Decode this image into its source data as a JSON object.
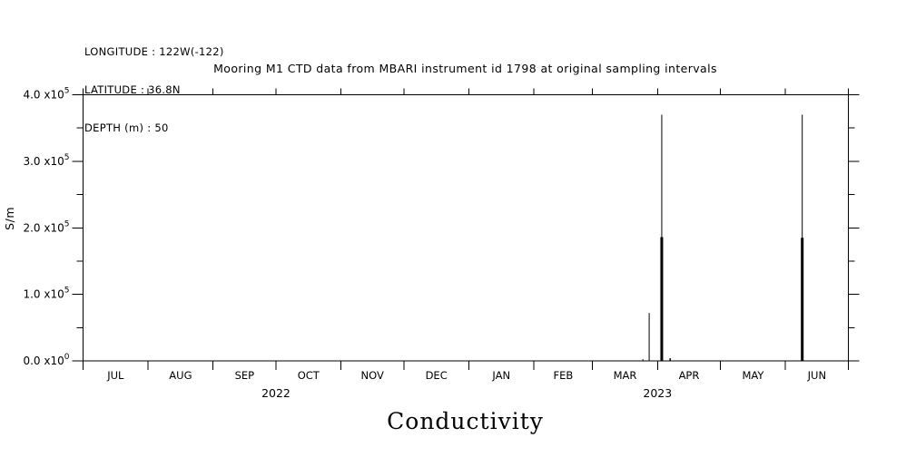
{
  "header": {
    "longitude": "LONGITUDE : 122W(-122)",
    "latitude": "LATITUDE : 36.8N",
    "depth": "DEPTH (m) : 50"
  },
  "chart_data": {
    "type": "line",
    "title": "Mooring M1 CTD data from MBARI instrument id 1798 at original sampling intervals",
    "bottom_title": "Conductivity",
    "ylabel": "S/m",
    "background_color": "#ffffff",
    "line_color": "#000000",
    "grid": "off",
    "legend": "none",
    "x_axis": {
      "start_date": "2022-07-01",
      "end_date": "2023-07-01",
      "month_labels": [
        "JUL",
        "AUG",
        "SEP",
        "OCT",
        "NOV",
        "DEC",
        "JAN",
        "FEB",
        "MAR",
        "APR",
        "MAY",
        "JUN"
      ],
      "month_tick_days": [
        0,
        31,
        62,
        92,
        123,
        153,
        184,
        215,
        243,
        274,
        304,
        335,
        365
      ],
      "year_labels": [
        {
          "label": "2022",
          "tick_index": 3
        },
        {
          "label": "2023",
          "tick_index": 9
        }
      ]
    },
    "y_axis": {
      "min": 0,
      "max": 400000,
      "minor_tick_step": 50000,
      "major_ticks": [
        {
          "value": 0,
          "mantissa": "0.0",
          "base": "x10",
          "exponent": "0"
        },
        {
          "value": 100000,
          "mantissa": "1.0",
          "base": "x10",
          "exponent": "5"
        },
        {
          "value": 200000,
          "mantissa": "2.0",
          "base": "x10",
          "exponent": "5"
        },
        {
          "value": 300000,
          "mantissa": "3.0",
          "base": "x10",
          "exponent": "5"
        },
        {
          "value": 400000,
          "mantissa": "4.0",
          "base": "x10",
          "exponent": "5"
        }
      ]
    },
    "series": [
      {
        "name": "conductivity",
        "units": "S/m",
        "spikes": [
          {
            "date": "2023-03-25",
            "value": 2500,
            "width": 1
          },
          {
            "date": "2023-03-28",
            "value": 72000,
            "width": 1
          },
          {
            "date": "2023-04-03",
            "value": 370000,
            "width": 1
          },
          {
            "date": "2023-04-03",
            "value": 186000,
            "width": 3
          },
          {
            "date": "2023-04-07",
            "value": 4000,
            "width": 1.5
          },
          {
            "date": "2023-06-09",
            "value": 370000,
            "width": 1
          },
          {
            "date": "2023-06-09",
            "value": 185000,
            "width": 3
          }
        ]
      }
    ]
  }
}
